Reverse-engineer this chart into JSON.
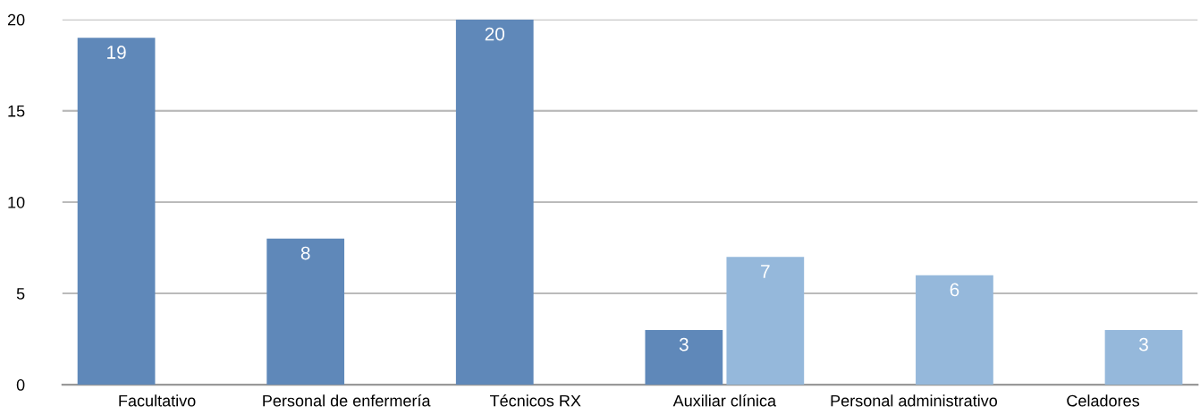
{
  "chart_data": {
    "type": "bar",
    "categories": [
      "Facultativo",
      "Personal de enfermería",
      "Técnicos RX",
      "Auxiliar clínica",
      "Personal administrativo",
      "Celadores"
    ],
    "series": [
      {
        "color": "#5f88b9",
        "values": [
          19,
          8,
          20,
          3,
          null,
          null
        ]
      },
      {
        "color": "#95b8db",
        "values": [
          null,
          null,
          null,
          7,
          6,
          3
        ]
      }
    ],
    "ylim": [
      0,
      20
    ],
    "yticks": [
      0,
      5,
      10,
      15,
      20
    ],
    "grid": "y",
    "data_labels": true,
    "legend": false
  }
}
